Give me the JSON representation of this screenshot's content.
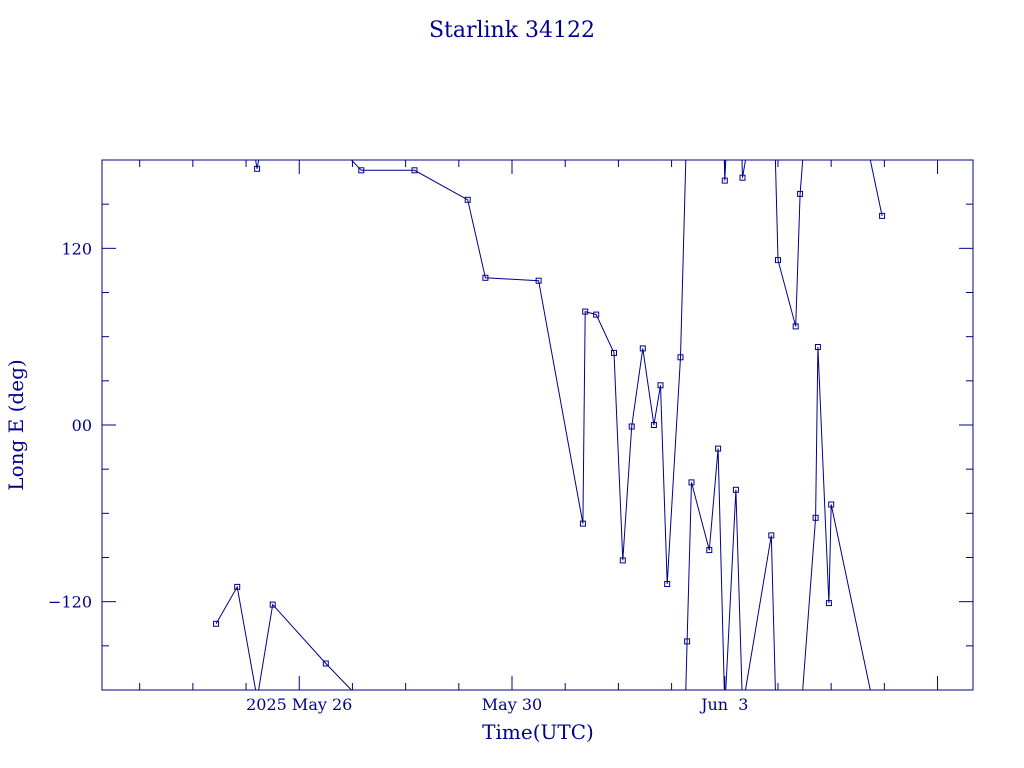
{
  "chart_data": {
    "type": "line",
    "title": "Starlink 34122",
    "xlabel": "Time(UTC)",
    "ylabel": "Long E (deg)",
    "color": "#00008b",
    "x_ticks": [
      {
        "value": "2025-05-26",
        "label": "2025 May 26"
      },
      {
        "value": "2025-05-30",
        "label": "May 30"
      },
      {
        "value": "2025-06-03",
        "label": "Jun  3"
      }
    ],
    "y_ticks": [
      {
        "value": -120,
        "label": "−120"
      },
      {
        "value": 0,
        "label": "00"
      },
      {
        "value": 120,
        "label": "120"
      }
    ],
    "xlim": [
      "2025-05-22T07:00",
      "2025-06-07T16:00"
    ],
    "ylim": [
      -180,
      180
    ],
    "grid": false,
    "series": [
      {
        "points": [
          [
            "2025-05-24T10:30",
            -135
          ],
          [
            "2025-05-24T20:00",
            -110
          ],
          [
            "2025-05-25T05:00",
            174
          ],
          [
            "2025-05-25T12:00",
            -122
          ],
          [
            "2025-05-26T12:00",
            -162
          ],
          [
            "2025-05-27T04:00",
            173
          ],
          [
            "2025-05-28T04:00",
            173
          ],
          [
            "2025-05-29T04:00",
            153
          ],
          [
            "2025-05-29T12:00",
            100
          ],
          [
            "2025-05-30T12:00",
            98
          ],
          [
            "2025-05-31T08:00",
            -67
          ],
          [
            "2025-05-31T09:00",
            77
          ],
          [
            "2025-05-31T14:00",
            75
          ],
          [
            "2025-05-31T22:00",
            49
          ],
          [
            "2025-06-01T02:00",
            -92
          ],
          [
            "2025-06-01T06:00",
            -1
          ],
          [
            "2025-06-01T11:00",
            52
          ],
          [
            "2025-06-01T16:00",
            0
          ],
          [
            "2025-06-01T19:00",
            27
          ],
          [
            "2025-06-01T22:00",
            -108
          ],
          [
            "2025-06-02T04:00",
            46
          ],
          [
            "2025-06-02T07:00",
            -147
          ],
          [
            "2025-06-02T09:00",
            -39
          ],
          [
            "2025-06-02T17:00",
            -85
          ],
          [
            "2025-06-02T21:00",
            -16
          ],
          [
            "2025-06-03T00:00",
            166
          ],
          [
            "2025-06-03T05:00",
            -44
          ],
          [
            "2025-06-03T08:00",
            168
          ],
          [
            "2025-06-03T21:00",
            -75
          ],
          [
            "2025-06-04T00:00",
            112
          ],
          [
            "2025-06-04T08:00",
            67
          ],
          [
            "2025-06-04T10:00",
            157
          ],
          [
            "2025-06-04T17:00",
            -63
          ],
          [
            "2025-06-04T18:00",
            53
          ],
          [
            "2025-06-04T23:00",
            -121
          ],
          [
            "2025-06-05T00:00",
            -54
          ],
          [
            "2025-06-05T23:00",
            142
          ]
        ]
      }
    ]
  }
}
